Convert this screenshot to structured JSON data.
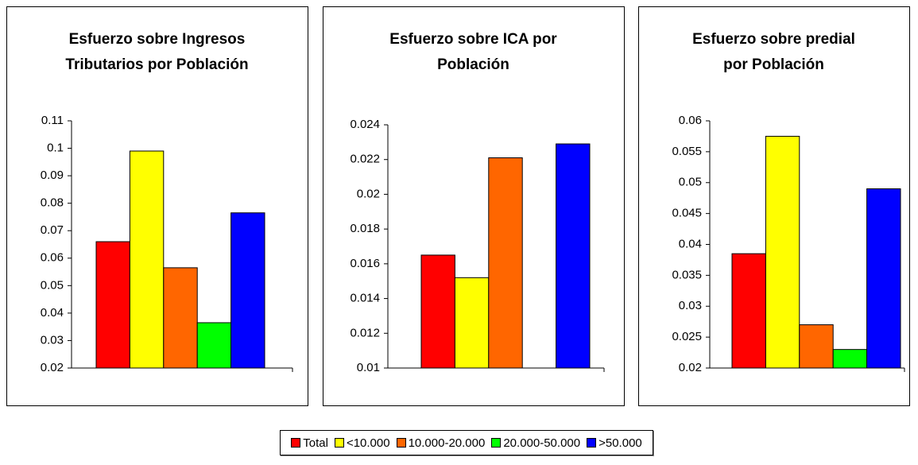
{
  "chart_data": [
    {
      "type": "bar",
      "title": "Esfuerzo sobre Ingresos\nTributarios por Población",
      "series": [
        {
          "name": "Total",
          "color": "#ff0000",
          "values": [
            0.066
          ]
        },
        {
          "name": "<10.000",
          "color": "#ffff00",
          "values": [
            0.099
          ]
        },
        {
          "name": "10.000-20.000",
          "color": "#ff6600",
          "values": [
            0.0565
          ]
        },
        {
          "name": "20.000-50.000",
          "color": "#00ff00",
          "values": [
            0.0365
          ]
        },
        {
          "name": ">50.000",
          "color": "#0000ff",
          "values": [
            0.0765
          ]
        }
      ],
      "ylim": [
        0.02,
        0.11
      ],
      "yticks": [
        0.02,
        0.03,
        0.04,
        0.05,
        0.06,
        0.07,
        0.08,
        0.09,
        0.1,
        0.11
      ]
    },
    {
      "type": "bar",
      "title": "Esfuerzo sobre ICA por\nPoblación",
      "values": [
        0.0165,
        0.0152,
        0.0221,
        null,
        0.0229
      ],
      "ylim": [
        0.01,
        0.024
      ],
      "yticks": [
        0.01,
        0.012,
        0.014,
        0.016,
        0.018,
        0.02,
        0.022,
        0.024
      ]
    },
    {
      "type": "bar",
      "title": "Esfuerzo sobre predial\npor Población",
      "values": [
        0.0385,
        0.0575,
        0.027,
        0.023,
        0.049
      ],
      "ylim": [
        0.02,
        0.06
      ],
      "yticks": [
        0.02,
        0.025,
        0.03,
        0.035,
        0.04,
        0.045,
        0.05,
        0.055,
        0.06
      ]
    }
  ]
}
